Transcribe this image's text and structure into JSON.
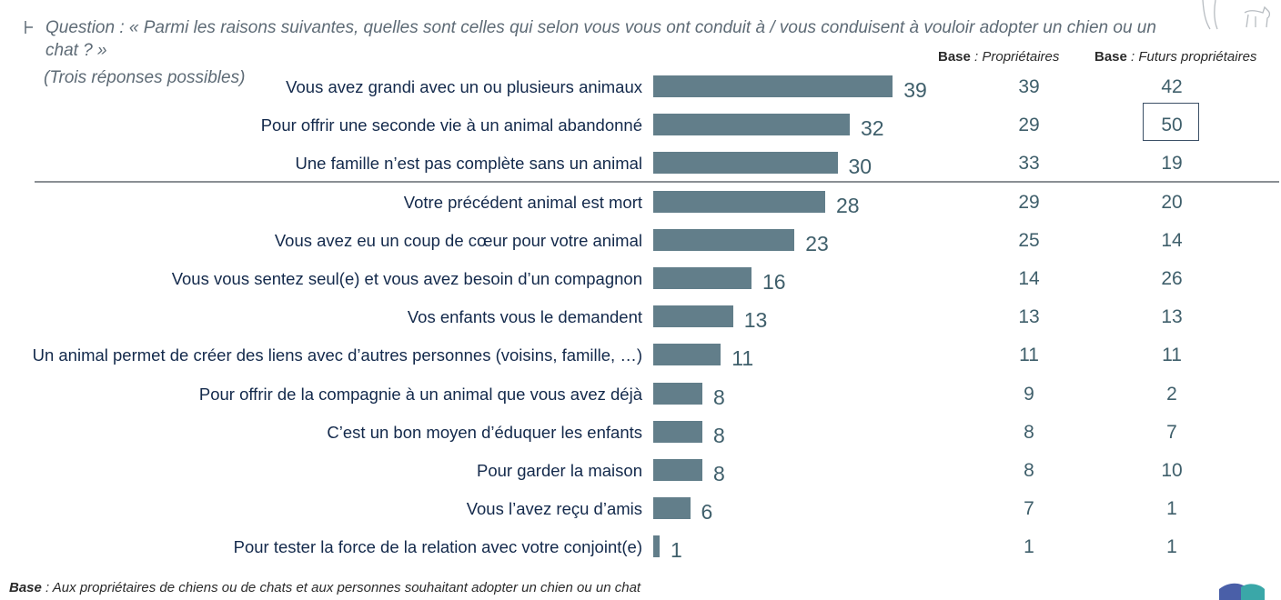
{
  "header": {
    "question": "Question : « Parmi les raisons suivantes, quelles sont celles qui selon vous vous ont conduit à / vous conduisent à vouloir adopter un chien ou un chat ? »",
    "subnote": "(Trois réponses possibles)"
  },
  "columns": {
    "owners_bold": "Base",
    "owners_rest": " : Propriétaires",
    "future_bold": "Base",
    "future_rest": " : Futurs propriétaires"
  },
  "footer": {
    "bold": "Base",
    "rest": " : Aux propriétaires de chiens ou de chats et aux personnes souhaitant adopter un chien ou un chat"
  },
  "colors": {
    "bar": "#627e8a",
    "label": "#13294b",
    "value": "#3f5f6b"
  },
  "chart_data": {
    "type": "bar",
    "orientation": "horizontal",
    "categories": [
      "Vous avez grandi avec un ou plusieurs animaux",
      "Pour offrir une seconde vie à un animal abandonné",
      "Une famille n’est pas complète sans un animal",
      "Votre précédent animal est mort",
      "Vous avez eu un coup de cœur pour votre animal",
      "Vous vous sentez seul(e) et vous avez besoin d’un compagnon",
      "Vos enfants vous le demandent",
      "Un animal permet de créer des liens avec d’autres personnes (voisins, famille, …)",
      "Pour offrir de la compagnie à un animal que vous avez déjà",
      "C’est un bon moyen d’éduquer les enfants",
      "Pour garder la maison",
      "Vous l’avez reçu d’amis",
      "Pour tester la force de la relation avec votre conjoint(e)"
    ],
    "values": [
      39,
      32,
      30,
      28,
      23,
      16,
      13,
      11,
      8,
      8,
      8,
      6,
      1
    ],
    "owners": [
      39,
      29,
      33,
      29,
      25,
      14,
      13,
      11,
      9,
      8,
      8,
      7,
      1
    ],
    "future_owners": [
      42,
      50,
      19,
      20,
      14,
      26,
      13,
      11,
      2,
      7,
      10,
      1,
      1
    ],
    "highlighted": {
      "column": "future_owners",
      "index": 1
    },
    "separator_after_index": 2,
    "xlim": [
      0,
      40
    ]
  }
}
